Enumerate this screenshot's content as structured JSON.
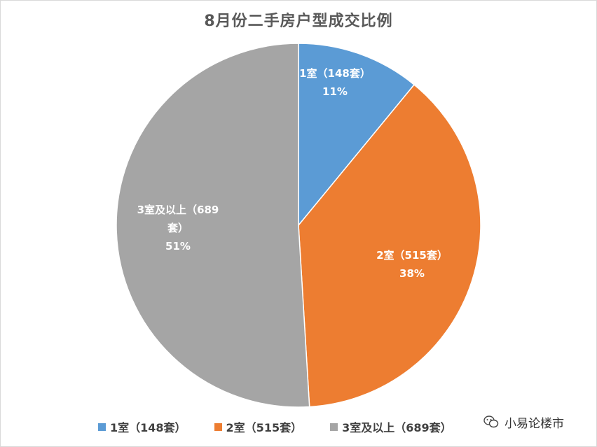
{
  "chart_data": {
    "type": "pie",
    "title": "8月份二手房户型成交比例",
    "slices": [
      {
        "name": "1室（148套）",
        "count": 148,
        "percent_label": "11%",
        "color": "#5b9bd5",
        "label_lines": [
          "1室（148套）",
          "11%"
        ]
      },
      {
        "name": "2室（515套）",
        "count": 515,
        "percent_label": "38%",
        "color": "#ed7d31",
        "label_lines": [
          "2室（515套）",
          "38%"
        ]
      },
      {
        "name": "3室及以上（689套）",
        "count": 689,
        "percent_label": "51%",
        "color": "#a5a5a5",
        "label_lines": [
          "3室及以上（689",
          "套）",
          "51%"
        ]
      }
    ],
    "legend_position": "bottom"
  },
  "watermark": {
    "text": "小易论楼市",
    "icon": "wechat-icon"
  }
}
